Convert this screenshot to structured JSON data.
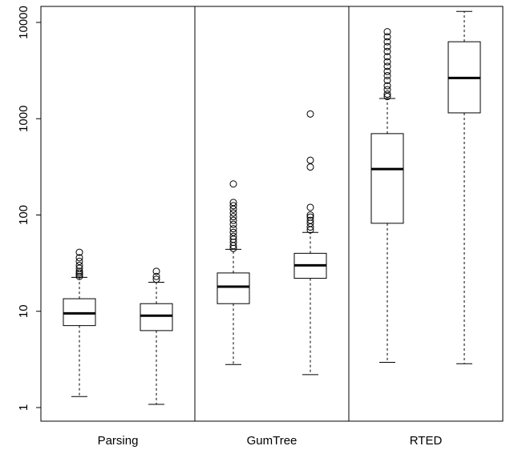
{
  "chart_data": {
    "type": "boxplot",
    "title": "",
    "xlabel": "",
    "ylabel": "",
    "y_scale": "log",
    "ylim": [
      0.85,
      13000
    ],
    "y_ticks": [
      1,
      10,
      100,
      1000,
      10000
    ],
    "y_tick_labels": [
      "1",
      "10",
      "100",
      "1000",
      "10000"
    ],
    "grid": false,
    "groups": [
      {
        "label": "Parsing",
        "boxes": [
          {
            "whisker_low": 1.3,
            "q1": 7.1,
            "median": 9.5,
            "q3": 13.5,
            "whisker_high": 22.5,
            "outliers": [
              23,
              24,
              25,
              26,
              28,
              30,
              33,
              36,
              41
            ]
          },
          {
            "whisker_low": 1.08,
            "q1": 6.3,
            "median": 9.0,
            "q3": 12.0,
            "whisker_high": 20.0,
            "outliers": [
              21.5,
              23,
              26
            ]
          }
        ]
      },
      {
        "label": "GumTree",
        "boxes": [
          {
            "whisker_low": 2.8,
            "q1": 12.0,
            "median": 18.0,
            "q3": 25.0,
            "whisker_high": 44.0,
            "outliers": [
              45,
              48,
              52,
              56,
              60,
              66,
              72,
              80,
              88,
              96,
              105,
              115,
              125,
              135,
              210
            ]
          },
          {
            "whisker_low": 2.2,
            "q1": 22.0,
            "median": 30.0,
            "q3": 40.0,
            "whisker_high": 66.0,
            "outliers": [
              70,
              75,
              82,
              88,
              95,
              100,
              120,
              315,
              370,
              1120
            ]
          }
        ]
      },
      {
        "label": "RTED",
        "boxes": [
          {
            "whisker_low": 2.95,
            "q1": 82,
            "median": 300,
            "q3": 700,
            "whisker_high": 1620,
            "outliers": [
              1700,
              1800,
              2000,
              2200,
              2500,
              2800,
              3100,
              3500,
              3900,
              4400,
              5000,
              5600,
              6300,
              7100,
              8000
            ]
          },
          {
            "whisker_low": 2.85,
            "q1": 1150,
            "median": 2650,
            "q3": 6300,
            "whisker_high": 13000,
            "outliers": []
          }
        ]
      }
    ]
  }
}
